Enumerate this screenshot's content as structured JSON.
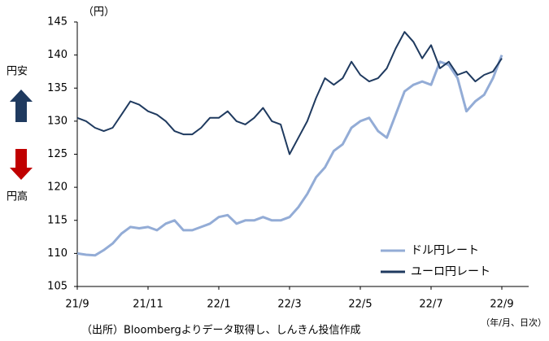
{
  "chart_data": {
    "type": "line",
    "y_label": "（円）",
    "x_label": "（年/月、日次）",
    "annotations": [
      "円安",
      "円高"
    ],
    "source": "（出所）Bloombergよりデータ取得し、しんきん投信作成",
    "categories": [
      "21/9",
      null,
      null,
      null,
      null,
      null,
      null,
      null,
      "21/11",
      null,
      null,
      null,
      null,
      null,
      null,
      null,
      "22/1",
      null,
      null,
      null,
      null,
      null,
      null,
      null,
      "22/3",
      null,
      null,
      null,
      null,
      null,
      null,
      null,
      "22/5",
      null,
      null,
      null,
      null,
      null,
      null,
      null,
      "22/7",
      null,
      null,
      null,
      null,
      null,
      null,
      null,
      "22/9"
    ],
    "series": [
      {
        "name": "ドル円レート",
        "color": "#93acd6",
        "values": [
          110,
          109.8,
          109.7,
          110.5,
          111.5,
          113,
          114,
          113.8,
          114,
          113.5,
          114.5,
          115,
          113.5,
          113.5,
          114,
          114.5,
          115.5,
          115.8,
          114.5,
          115,
          115,
          115.5,
          115,
          115,
          115.5,
          117,
          119,
          121.5,
          123,
          125.5,
          126.5,
          129,
          130,
          130.5,
          128.5,
          127.5,
          131,
          134.5,
          135.5,
          136,
          135.5,
          139,
          138.5,
          136.5,
          131.5,
          133,
          134,
          136.5,
          140
        ]
      },
      {
        "name": "ユーロ円レート",
        "color": "#1f3a5f",
        "values": [
          130.5,
          130,
          129,
          128.5,
          129,
          131,
          133,
          132.5,
          131.5,
          131,
          130,
          128.5,
          128,
          128,
          129,
          130.5,
          130.5,
          131.5,
          130,
          129.5,
          130.5,
          132,
          130,
          129.5,
          125,
          127.5,
          130,
          133.5,
          136.5,
          135.5,
          136.5,
          139,
          137,
          136,
          136.5,
          138,
          141,
          143.5,
          142,
          139.5,
          141.5,
          138,
          139,
          137,
          137.5,
          136,
          137,
          137.5,
          139.5
        ]
      }
    ],
    "ylim": [
      105,
      145
    ],
    "yticks": [
      105,
      110,
      115,
      120,
      125,
      130,
      135,
      140,
      145
    ]
  }
}
